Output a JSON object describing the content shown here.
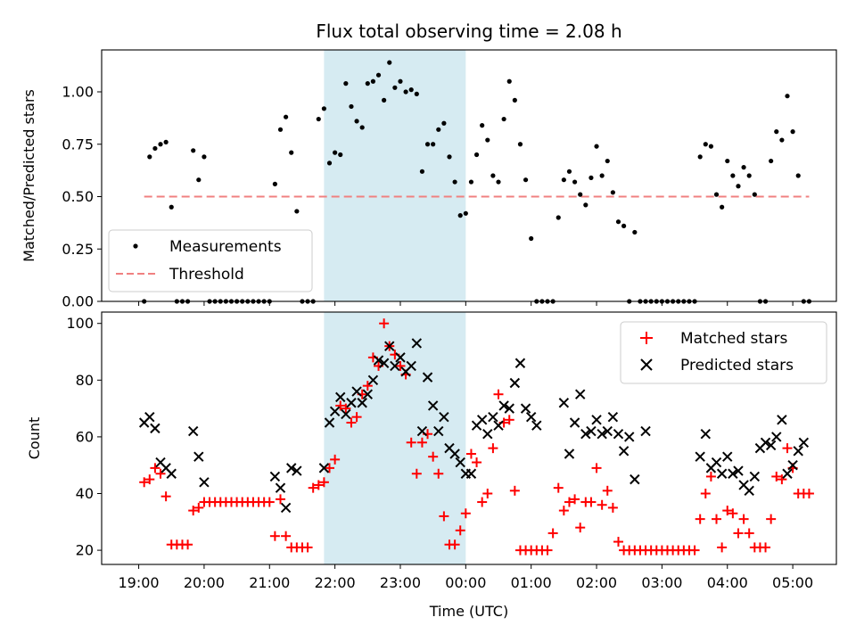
{
  "chart_data": [
    {
      "type": "scatter",
      "title": "Flux total observing time = 2.08 h",
      "xlabel": "",
      "ylabel": "Matched/Predicted stars",
      "ylim": [
        0,
        1.2
      ],
      "yticks": [
        "0.00",
        "0.25",
        "0.50",
        "0.75",
        "1.00"
      ],
      "highlight_span": [
        "21:50",
        "00:00"
      ],
      "legend": {
        "placement": "lower-left",
        "entries": [
          "Measurements",
          "Threshold"
        ]
      },
      "threshold": {
        "name": "Threshold",
        "value": 0.5,
        "x_start": "19:05",
        "x_end": "05:15",
        "color": "#f08080"
      },
      "series": [
        {
          "name": "Measurements",
          "color": "#000000",
          "x": [
            "19:05",
            "19:10",
            "19:15",
            "19:20",
            "19:25",
            "19:30",
            "19:35",
            "19:40",
            "19:45",
            "19:50",
            "19:55",
            "20:00",
            "20:05",
            "20:10",
            "20:15",
            "20:20",
            "20:25",
            "20:30",
            "20:35",
            "20:40",
            "20:45",
            "20:50",
            "20:55",
            "21:00",
            "21:05",
            "21:10",
            "21:15",
            "21:20",
            "21:25",
            "21:30",
            "21:35",
            "21:40",
            "21:45",
            "21:50",
            "21:55",
            "22:00",
            "22:05",
            "22:10",
            "22:15",
            "22:20",
            "22:25",
            "22:30",
            "22:35",
            "22:40",
            "22:45",
            "22:50",
            "22:55",
            "23:00",
            "23:05",
            "23:10",
            "23:15",
            "23:20",
            "23:25",
            "23:30",
            "23:35",
            "23:40",
            "23:45",
            "23:50",
            "23:55",
            "00:00",
            "00:05",
            "00:10",
            "00:15",
            "00:20",
            "00:25",
            "00:30",
            "00:35",
            "00:40",
            "00:45",
            "00:50",
            "00:55",
            "01:00",
            "01:05",
            "01:10",
            "01:15",
            "01:20",
            "01:25",
            "01:30",
            "01:35",
            "01:40",
            "01:45",
            "01:50",
            "01:55",
            "02:00",
            "02:05",
            "02:10",
            "02:15",
            "02:20",
            "02:25",
            "02:30",
            "02:35",
            "02:40",
            "02:45",
            "02:50",
            "02:55",
            "03:00",
            "03:05",
            "03:10",
            "03:15",
            "03:20",
            "03:25",
            "03:30",
            "03:35",
            "03:40",
            "03:45",
            "03:50",
            "03:55",
            "04:00",
            "04:05",
            "04:10",
            "04:15",
            "04:20",
            "04:25",
            "04:30",
            "04:35",
            "04:40",
            "04:45",
            "04:50",
            "04:55",
            "05:00",
            "05:05",
            "05:10",
            "05:15"
          ],
          "values": [
            0,
            0.69,
            0.73,
            0.75,
            0.76,
            0.45,
            0,
            0,
            0,
            0.72,
            0.58,
            0.69,
            0,
            0,
            0,
            0,
            0,
            0,
            0,
            0,
            0,
            0,
            0,
            0,
            0.56,
            0.82,
            0.88,
            0.71,
            0.43,
            0,
            0,
            0,
            0.87,
            0.92,
            0.66,
            0.71,
            0.7,
            1.04,
            0.93,
            0.86,
            0.83,
            1.04,
            1.05,
            1.08,
            0.96,
            1.14,
            1.02,
            1.05,
            1.0,
            1.01,
            0.99,
            0.62,
            0.75,
            0.75,
            0.82,
            0.85,
            0.69,
            0.57,
            0.41,
            0.42,
            0.57,
            0.7,
            0.84,
            0.77,
            0.6,
            0.57,
            0.87,
            1.05,
            0.96,
            0.75,
            0.58,
            0.3,
            0,
            0,
            0,
            0,
            0.4,
            0.58,
            0.62,
            0.57,
            0.51,
            0.46,
            0.59,
            0.74,
            0.6,
            0.67,
            0.52,
            0.38,
            0.36,
            0,
            0.33,
            0,
            0,
            0,
            0,
            0,
            0,
            0,
            0,
            0,
            0,
            0,
            0.69,
            0.75,
            0.74,
            0.51,
            0.45,
            0.67,
            0.6,
            0.55,
            0.64,
            0.6,
            0.51,
            0,
            0,
            0.67,
            0.81,
            0.77,
            0.98,
            0.81,
            0.6,
            0,
            0
          ]
        }
      ]
    },
    {
      "type": "scatter",
      "title": "",
      "xlabel": "Time (UTC)",
      "ylabel": "Count",
      "ylim": [
        15,
        104
      ],
      "yticks": [
        "20",
        "40",
        "60",
        "80",
        "100"
      ],
      "xticks": [
        "19:00",
        "20:00",
        "21:00",
        "22:00",
        "23:00",
        "00:00",
        "01:00",
        "02:00",
        "03:00",
        "04:00",
        "05:00"
      ],
      "highlight_span": [
        "21:50",
        "00:00"
      ],
      "legend": {
        "placement": "upper-right",
        "entries": [
          "Matched stars",
          "Predicted stars"
        ]
      },
      "series": [
        {
          "name": "Matched stars",
          "marker": "+",
          "color": "#ff0000",
          "x": [
            "19:05",
            "19:10",
            "19:15",
            "19:20",
            "19:25",
            "19:30",
            "19:35",
            "19:40",
            "19:45",
            "19:50",
            "19:55",
            "20:00",
            "20:05",
            "20:10",
            "20:15",
            "20:20",
            "20:25",
            "20:30",
            "20:35",
            "20:40",
            "20:45",
            "20:50",
            "20:55",
            "21:00",
            "21:05",
            "21:10",
            "21:15",
            "21:20",
            "21:25",
            "21:30",
            "21:35",
            "21:40",
            "21:45",
            "21:50",
            "21:55",
            "22:00",
            "22:05",
            "22:10",
            "22:15",
            "22:20",
            "22:25",
            "22:30",
            "22:35",
            "22:40",
            "22:45",
            "22:50",
            "22:55",
            "23:00",
            "23:05",
            "23:10",
            "23:15",
            "23:20",
            "23:25",
            "23:30",
            "23:35",
            "23:40",
            "23:45",
            "23:50",
            "23:55",
            "00:00",
            "00:05",
            "00:10",
            "00:15",
            "00:20",
            "00:25",
            "00:30",
            "00:35",
            "00:40",
            "00:45",
            "00:50",
            "00:55",
            "01:00",
            "01:05",
            "01:10",
            "01:15",
            "01:20",
            "01:25",
            "01:30",
            "01:35",
            "01:40",
            "01:45",
            "01:50",
            "01:55",
            "02:00",
            "02:05",
            "02:10",
            "02:15",
            "02:20",
            "02:25",
            "02:30",
            "02:35",
            "02:40",
            "02:45",
            "02:50",
            "02:55",
            "03:00",
            "03:05",
            "03:10",
            "03:15",
            "03:20",
            "03:25",
            "03:30",
            "03:35",
            "03:40",
            "03:45",
            "03:50",
            "03:55",
            "04:00",
            "04:05",
            "04:10",
            "04:15",
            "04:20",
            "04:25",
            "04:30",
            "04:35",
            "04:40",
            "04:45",
            "04:50",
            "04:55",
            "05:00",
            "05:05",
            "05:10",
            "05:15"
          ],
          "values": [
            44,
            45,
            49,
            47,
            39,
            22,
            22,
            22,
            22,
            34,
            35,
            37,
            37,
            37,
            37,
            37,
            37,
            37,
            37,
            37,
            37,
            37,
            37,
            37,
            25,
            38,
            25,
            21,
            21,
            21,
            21,
            42,
            43,
            44,
            49,
            52,
            71,
            70,
            65,
            67,
            75,
            78,
            88,
            85,
            100,
            92,
            89,
            85,
            82,
            58,
            47,
            58,
            61,
            53,
            47,
            32,
            22,
            22,
            27,
            33,
            54,
            51,
            37,
            40,
            56,
            75,
            65,
            66,
            41,
            20,
            20,
            20,
            20,
            20,
            20,
            26,
            42,
            34,
            37,
            38,
            28,
            37,
            37,
            49,
            36,
            41,
            35,
            23,
            20,
            20,
            20,
            20,
            20,
            20,
            20,
            20,
            20,
            20,
            20,
            20,
            20,
            20,
            31,
            40,
            46,
            31,
            21,
            34,
            33,
            26,
            31,
            26,
            21,
            21,
            21,
            31,
            46,
            45,
            56,
            49,
            40,
            40,
            40
          ]
        },
        {
          "name": "Predicted stars",
          "marker": "x",
          "color": "#000000",
          "x": [
            "19:05",
            "19:10",
            "19:15",
            "19:20",
            "19:25",
            "19:30",
            "19:50",
            "19:55",
            "20:00",
            "21:05",
            "21:10",
            "21:15",
            "21:20",
            "21:25",
            "21:50",
            "21:55",
            "22:00",
            "22:05",
            "22:10",
            "22:15",
            "22:20",
            "22:25",
            "22:30",
            "22:35",
            "22:40",
            "22:45",
            "22:50",
            "22:55",
            "23:00",
            "23:05",
            "23:10",
            "23:15",
            "23:20",
            "23:25",
            "23:30",
            "23:35",
            "23:40",
            "23:45",
            "23:50",
            "23:55",
            "00:00",
            "00:05",
            "00:10",
            "00:15",
            "00:20",
            "00:25",
            "00:30",
            "00:35",
            "00:40",
            "00:45",
            "00:50",
            "00:55",
            "01:00",
            "01:05",
            "01:30",
            "01:35",
            "01:40",
            "01:45",
            "01:50",
            "01:55",
            "02:00",
            "02:05",
            "02:10",
            "02:15",
            "02:20",
            "02:25",
            "02:30",
            "02:35",
            "02:45",
            "03:35",
            "03:40",
            "03:45",
            "03:50",
            "03:55",
            "04:00",
            "04:05",
            "04:10",
            "04:15",
            "04:20",
            "04:25",
            "04:30",
            "04:35",
            "04:40",
            "04:45",
            "04:50",
            "04:55",
            "05:00",
            "05:05",
            "05:10"
          ],
          "values": [
            65,
            67,
            63,
            51,
            49,
            47,
            62,
            53,
            44,
            46,
            42,
            35,
            49,
            48,
            49,
            65,
            69,
            74,
            68,
            72,
            76,
            72,
            75,
            80,
            87,
            86,
            92,
            85,
            88,
            83,
            85,
            93,
            62,
            81,
            71,
            62,
            67,
            56,
            54,
            51,
            47,
            47,
            64,
            66,
            61,
            67,
            64,
            71,
            70,
            79,
            86,
            70,
            67,
            64,
            72,
            54,
            65,
            75,
            61,
            62,
            66,
            61,
            62,
            67,
            61,
            55,
            60,
            45,
            62,
            53,
            61,
            49,
            51,
            47,
            53,
            47,
            48,
            43,
            41,
            46,
            56,
            58,
            57,
            60,
            66,
            47,
            50,
            55,
            58
          ]
        }
      ]
    }
  ]
}
